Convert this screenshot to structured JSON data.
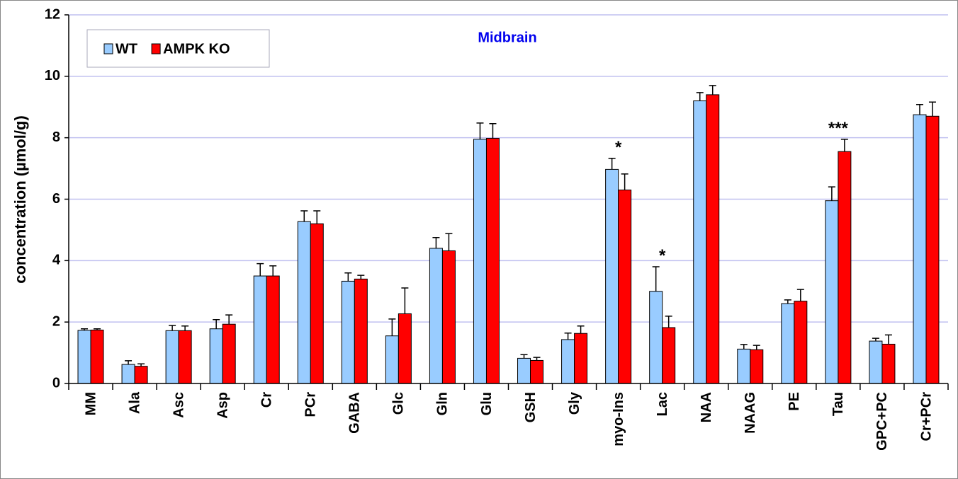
{
  "chart_data": {
    "type": "bar",
    "title": "Midbrain",
    "y_label": "concentration (µmol/g)",
    "categories": [
      "MM",
      "Ala",
      "Asc",
      "Asp",
      "Cr",
      "PCr",
      "GABA",
      "Glc",
      "Gln",
      "Glu",
      "GSH",
      "Gly",
      "myo-Ins",
      "Lac",
      "NAA",
      "NAAG",
      "PE",
      "Tau",
      "GPC+PC",
      "Cr+PCr"
    ],
    "series": [
      {
        "name": "WT",
        "color": "#99ccff",
        "values": [
          1.73,
          0.62,
          1.72,
          1.78,
          3.5,
          5.27,
          3.33,
          1.55,
          4.4,
          7.95,
          0.82,
          1.43,
          6.97,
          3.0,
          9.2,
          1.12,
          2.6,
          5.95,
          1.38,
          8.75
        ],
        "errors": [
          0.05,
          0.12,
          0.17,
          0.3,
          0.4,
          0.35,
          0.27,
          0.55,
          0.35,
          0.53,
          0.12,
          0.21,
          0.36,
          0.8,
          0.27,
          0.15,
          0.12,
          0.45,
          0.09,
          0.33
        ]
      },
      {
        "name": "AMPK KO",
        "color": "#ff0000",
        "values": [
          1.74,
          0.56,
          1.72,
          1.93,
          3.5,
          5.2,
          3.4,
          2.27,
          4.32,
          7.98,
          0.75,
          1.63,
          6.3,
          1.82,
          9.4,
          1.1,
          2.68,
          7.55,
          1.28,
          8.7
        ],
        "errors": [
          0.04,
          0.08,
          0.15,
          0.3,
          0.33,
          0.42,
          0.12,
          0.84,
          0.56,
          0.48,
          0.1,
          0.24,
          0.52,
          0.37,
          0.3,
          0.14,
          0.38,
          0.4,
          0.3,
          0.46
        ]
      }
    ],
    "significance": [
      null,
      null,
      null,
      null,
      null,
      null,
      null,
      null,
      null,
      null,
      null,
      null,
      "*",
      "*",
      null,
      null,
      null,
      "***",
      null,
      null
    ],
    "ylim": [
      0,
      12
    ],
    "yticks": [
      0,
      2,
      4,
      6,
      8,
      10,
      12
    ],
    "grid": true,
    "legend": "top-left"
  }
}
